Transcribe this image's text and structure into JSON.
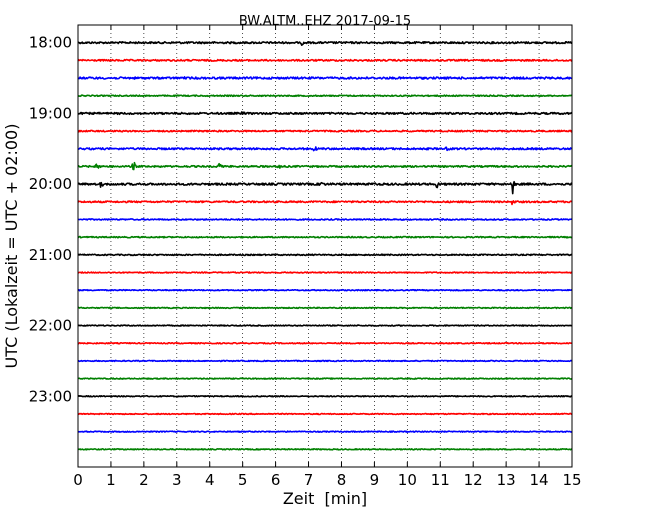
{
  "chart_data": {
    "type": "line",
    "title": "BW.ALTM..EHZ 2017-09-15",
    "xlabel": "Zeit  [min]",
    "ylabel": "UTC (Lokalzeit = UTC + 02:00)",
    "xlim": [
      0,
      15
    ],
    "x_ticks": [
      "0",
      "1",
      "2",
      "3",
      "4",
      "5",
      "6",
      "7",
      "8",
      "9",
      "10",
      "11",
      "12",
      "13",
      "14",
      "15"
    ],
    "y_ticks": [
      "18:00",
      "19:00",
      "20:00",
      "21:00",
      "22:00",
      "23:00"
    ],
    "ylim_time": [
      "17:45",
      "24:00"
    ],
    "grid": "vertical dotted",
    "trace_colors": [
      "#000000",
      "#ff0000",
      "#0000ff",
      "#008000"
    ],
    "series": [
      {
        "start": "18:00",
        "color": "#000000",
        "noise": 0.9,
        "events": [
          {
            "x": 6.8,
            "amp": 3
          }
        ]
      },
      {
        "start": "18:15",
        "color": "#ff0000",
        "noise": 0.8,
        "events": []
      },
      {
        "start": "18:30",
        "color": "#0000ff",
        "noise": 1.0,
        "events": [
          {
            "x": 3.2,
            "amp": 2.5
          }
        ]
      },
      {
        "start": "18:45",
        "color": "#008000",
        "noise": 0.6,
        "events": []
      },
      {
        "start": "19:00",
        "color": "#000000",
        "noise": 0.9,
        "events": [
          {
            "x": 5.0,
            "amp": 2
          }
        ]
      },
      {
        "start": "19:15",
        "color": "#ff0000",
        "noise": 0.7,
        "events": []
      },
      {
        "start": "19:30",
        "color": "#0000ff",
        "noise": 0.9,
        "events": [
          {
            "x": 7.2,
            "amp": 2.5
          },
          {
            "x": 11.2,
            "amp": 2
          }
        ]
      },
      {
        "start": "19:45",
        "color": "#008000",
        "noise": 0.8,
        "events": [
          {
            "x": 0.6,
            "amp": 7
          },
          {
            "x": 1.7,
            "amp": 5
          },
          {
            "x": 4.3,
            "amp": 4
          },
          {
            "x": 6.1,
            "amp": 3
          }
        ]
      },
      {
        "start": "20:00",
        "color": "#000000",
        "noise": 1.0,
        "events": [
          {
            "x": 0.7,
            "amp": 3
          },
          {
            "x": 7.4,
            "amp": 3
          },
          {
            "x": 9.0,
            "amp": 3
          },
          {
            "x": 10.9,
            "amp": 4
          },
          {
            "x": 13.2,
            "amp": 9
          }
        ]
      },
      {
        "start": "20:15",
        "color": "#ff0000",
        "noise": 0.8,
        "events": [
          {
            "x": 13.2,
            "amp": 4
          }
        ]
      },
      {
        "start": "20:30",
        "color": "#0000ff",
        "noise": 0.6,
        "events": []
      },
      {
        "start": "20:45",
        "color": "#008000",
        "noise": 0.6,
        "events": []
      },
      {
        "start": "21:00",
        "color": "#000000",
        "noise": 0.6,
        "events": []
      },
      {
        "start": "21:15",
        "color": "#ff0000",
        "noise": 0.5,
        "events": []
      },
      {
        "start": "21:30",
        "color": "#0000ff",
        "noise": 0.5,
        "events": []
      },
      {
        "start": "21:45",
        "color": "#008000",
        "noise": 0.5,
        "events": []
      },
      {
        "start": "22:00",
        "color": "#000000",
        "noise": 0.5,
        "events": []
      },
      {
        "start": "22:15",
        "color": "#ff0000",
        "noise": 0.5,
        "events": []
      },
      {
        "start": "22:30",
        "color": "#0000ff",
        "noise": 0.5,
        "events": []
      },
      {
        "start": "22:45",
        "color": "#008000",
        "noise": 0.5,
        "events": []
      },
      {
        "start": "23:00",
        "color": "#000000",
        "noise": 0.5,
        "events": []
      },
      {
        "start": "23:15",
        "color": "#ff0000",
        "noise": 0.5,
        "events": []
      },
      {
        "start": "23:30",
        "color": "#0000ff",
        "noise": 0.5,
        "events": []
      },
      {
        "start": "23:45",
        "color": "#008000",
        "noise": 0.5,
        "events": []
      }
    ]
  }
}
